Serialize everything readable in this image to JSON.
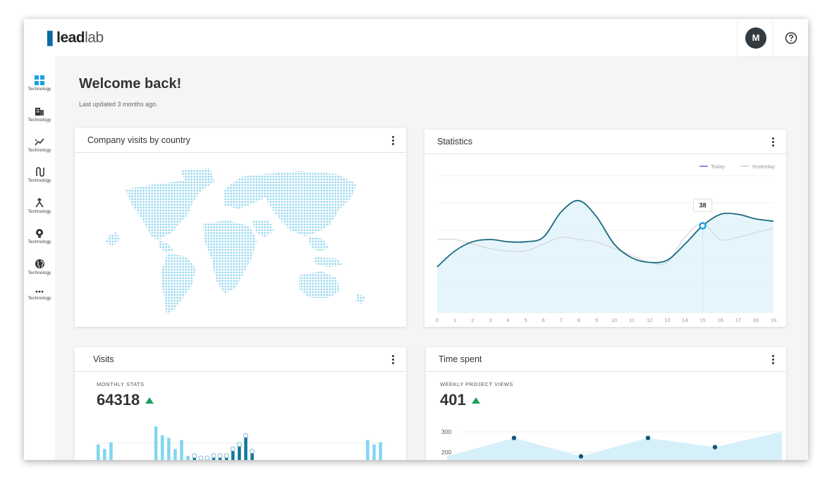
{
  "brand": {
    "mark": "❚",
    "bold": "lead",
    "light": "lab"
  },
  "user": {
    "initial": "M"
  },
  "header": {
    "title": "Welcome back!",
    "subtitle": "Last updated 3 months ago."
  },
  "sidebar": {
    "items": [
      {
        "label": "Technology",
        "icon": "dashboard-grid-icon"
      },
      {
        "label": "Technology",
        "icon": "building-icon"
      },
      {
        "label": "Technology",
        "icon": "trend-icon"
      },
      {
        "label": "Technology",
        "icon": "route-icon"
      },
      {
        "label": "Technology",
        "icon": "merge-icon"
      },
      {
        "label": "Technology",
        "icon": "idea-icon"
      },
      {
        "label": "Technology",
        "icon": "globe-icon"
      },
      {
        "label": "Technology",
        "icon": "more-icon"
      }
    ]
  },
  "cards": {
    "map": {
      "title": "Company visits by country"
    },
    "statistics": {
      "title": "Statistics",
      "legend_today": "Today",
      "legend_yesterday": "Yesterday",
      "tooltip": "38"
    },
    "visits": {
      "title": "Visits",
      "label": "MONTHLY STATS",
      "value": "64318"
    },
    "time": {
      "title": "Time spent",
      "label": "WEEKLY PROJECT VIEWS",
      "value": "401"
    }
  },
  "colors": {
    "accent": "#1a6b80",
    "light_fill": "#dff2fa",
    "bar_light": "#7fd6f2",
    "bar_dark": "#13759b",
    "up": "#1aa260"
  },
  "chart_data": [
    {
      "type": "line",
      "x": [
        0,
        1,
        2,
        3,
        4,
        5,
        6,
        7,
        8,
        9,
        10,
        11,
        12,
        13,
        14,
        15,
        16,
        17,
        18,
        19
      ],
      "series": [
        {
          "name": "Today",
          "values": [
            20,
            27,
            31,
            32,
            31,
            31,
            33,
            44,
            49,
            42,
            30,
            24,
            22,
            23,
            30,
            38,
            43,
            43,
            41,
            40
          ]
        },
        {
          "name": "Yesterday",
          "values": [
            32,
            32,
            30,
            28,
            27,
            27,
            30,
            33,
            32,
            31,
            28,
            25,
            22,
            22,
            33,
            39,
            32,
            33,
            35,
            37
          ]
        }
      ],
      "highlight": {
        "x": 15,
        "label": "38"
      }
    },
    {
      "type": "bar",
      "series": [
        {
          "name": "light",
          "values": [
            10,
            8,
            11,
            2,
            0,
            0,
            0,
            0,
            0,
            18,
            14,
            13,
            8,
            12,
            5,
            0,
            0,
            0,
            0,
            0,
            0,
            0,
            0,
            0,
            0,
            0,
            0,
            0,
            0,
            0,
            0,
            0,
            0,
            0,
            0,
            0,
            0,
            3,
            0,
            0,
            0,
            2,
            12,
            10,
            11
          ]
        },
        {
          "name": "dark",
          "values": [
            0,
            0,
            0,
            0,
            0,
            0,
            0,
            0,
            0,
            0,
            0,
            0,
            0,
            0,
            0,
            5,
            4,
            4,
            5,
            5,
            5,
            8,
            10,
            14,
            7,
            0,
            0,
            0,
            0,
            0,
            0,
            0,
            0,
            0,
            0,
            0,
            0,
            0,
            0,
            0,
            0,
            0,
            0,
            0,
            0
          ]
        }
      ]
    },
    {
      "type": "area",
      "y_ticks": [
        300,
        200
      ],
      "points": [
        {
          "x": 0,
          "y": 180
        },
        {
          "x": 1,
          "y": 270
        },
        {
          "x": 2,
          "y": 180
        },
        {
          "x": 3,
          "y": 270
        },
        {
          "x": 4,
          "y": 225
        },
        {
          "x": 5,
          "y": 300
        }
      ]
    }
  ]
}
